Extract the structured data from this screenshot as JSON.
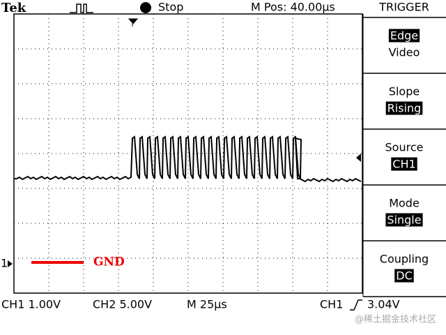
{
  "header": {
    "brand": "Tek",
    "status": "Stop",
    "position": "M Pos: 40.00µs",
    "menu_title": "TRIGGER"
  },
  "menu": [
    {
      "label": "Edge",
      "option": "Video"
    },
    {
      "label": "Slope",
      "option": "Rising"
    },
    {
      "label": "Source",
      "option": "CH1"
    },
    {
      "label": "Mode",
      "option": "Single"
    },
    {
      "label": "Coupling",
      "option": "DC"
    }
  ],
  "screen": {
    "channel_marker": "1",
    "ground_label": "GND"
  },
  "footer": {
    "ch1_scale": "CH1 1.00V",
    "ch2_scale": "CH2 5.00V",
    "time_scale": "M 25µs",
    "trigger_source": "CH1",
    "trigger_level": "3.04V"
  },
  "watermark": "@稀土掘金技术社区"
}
